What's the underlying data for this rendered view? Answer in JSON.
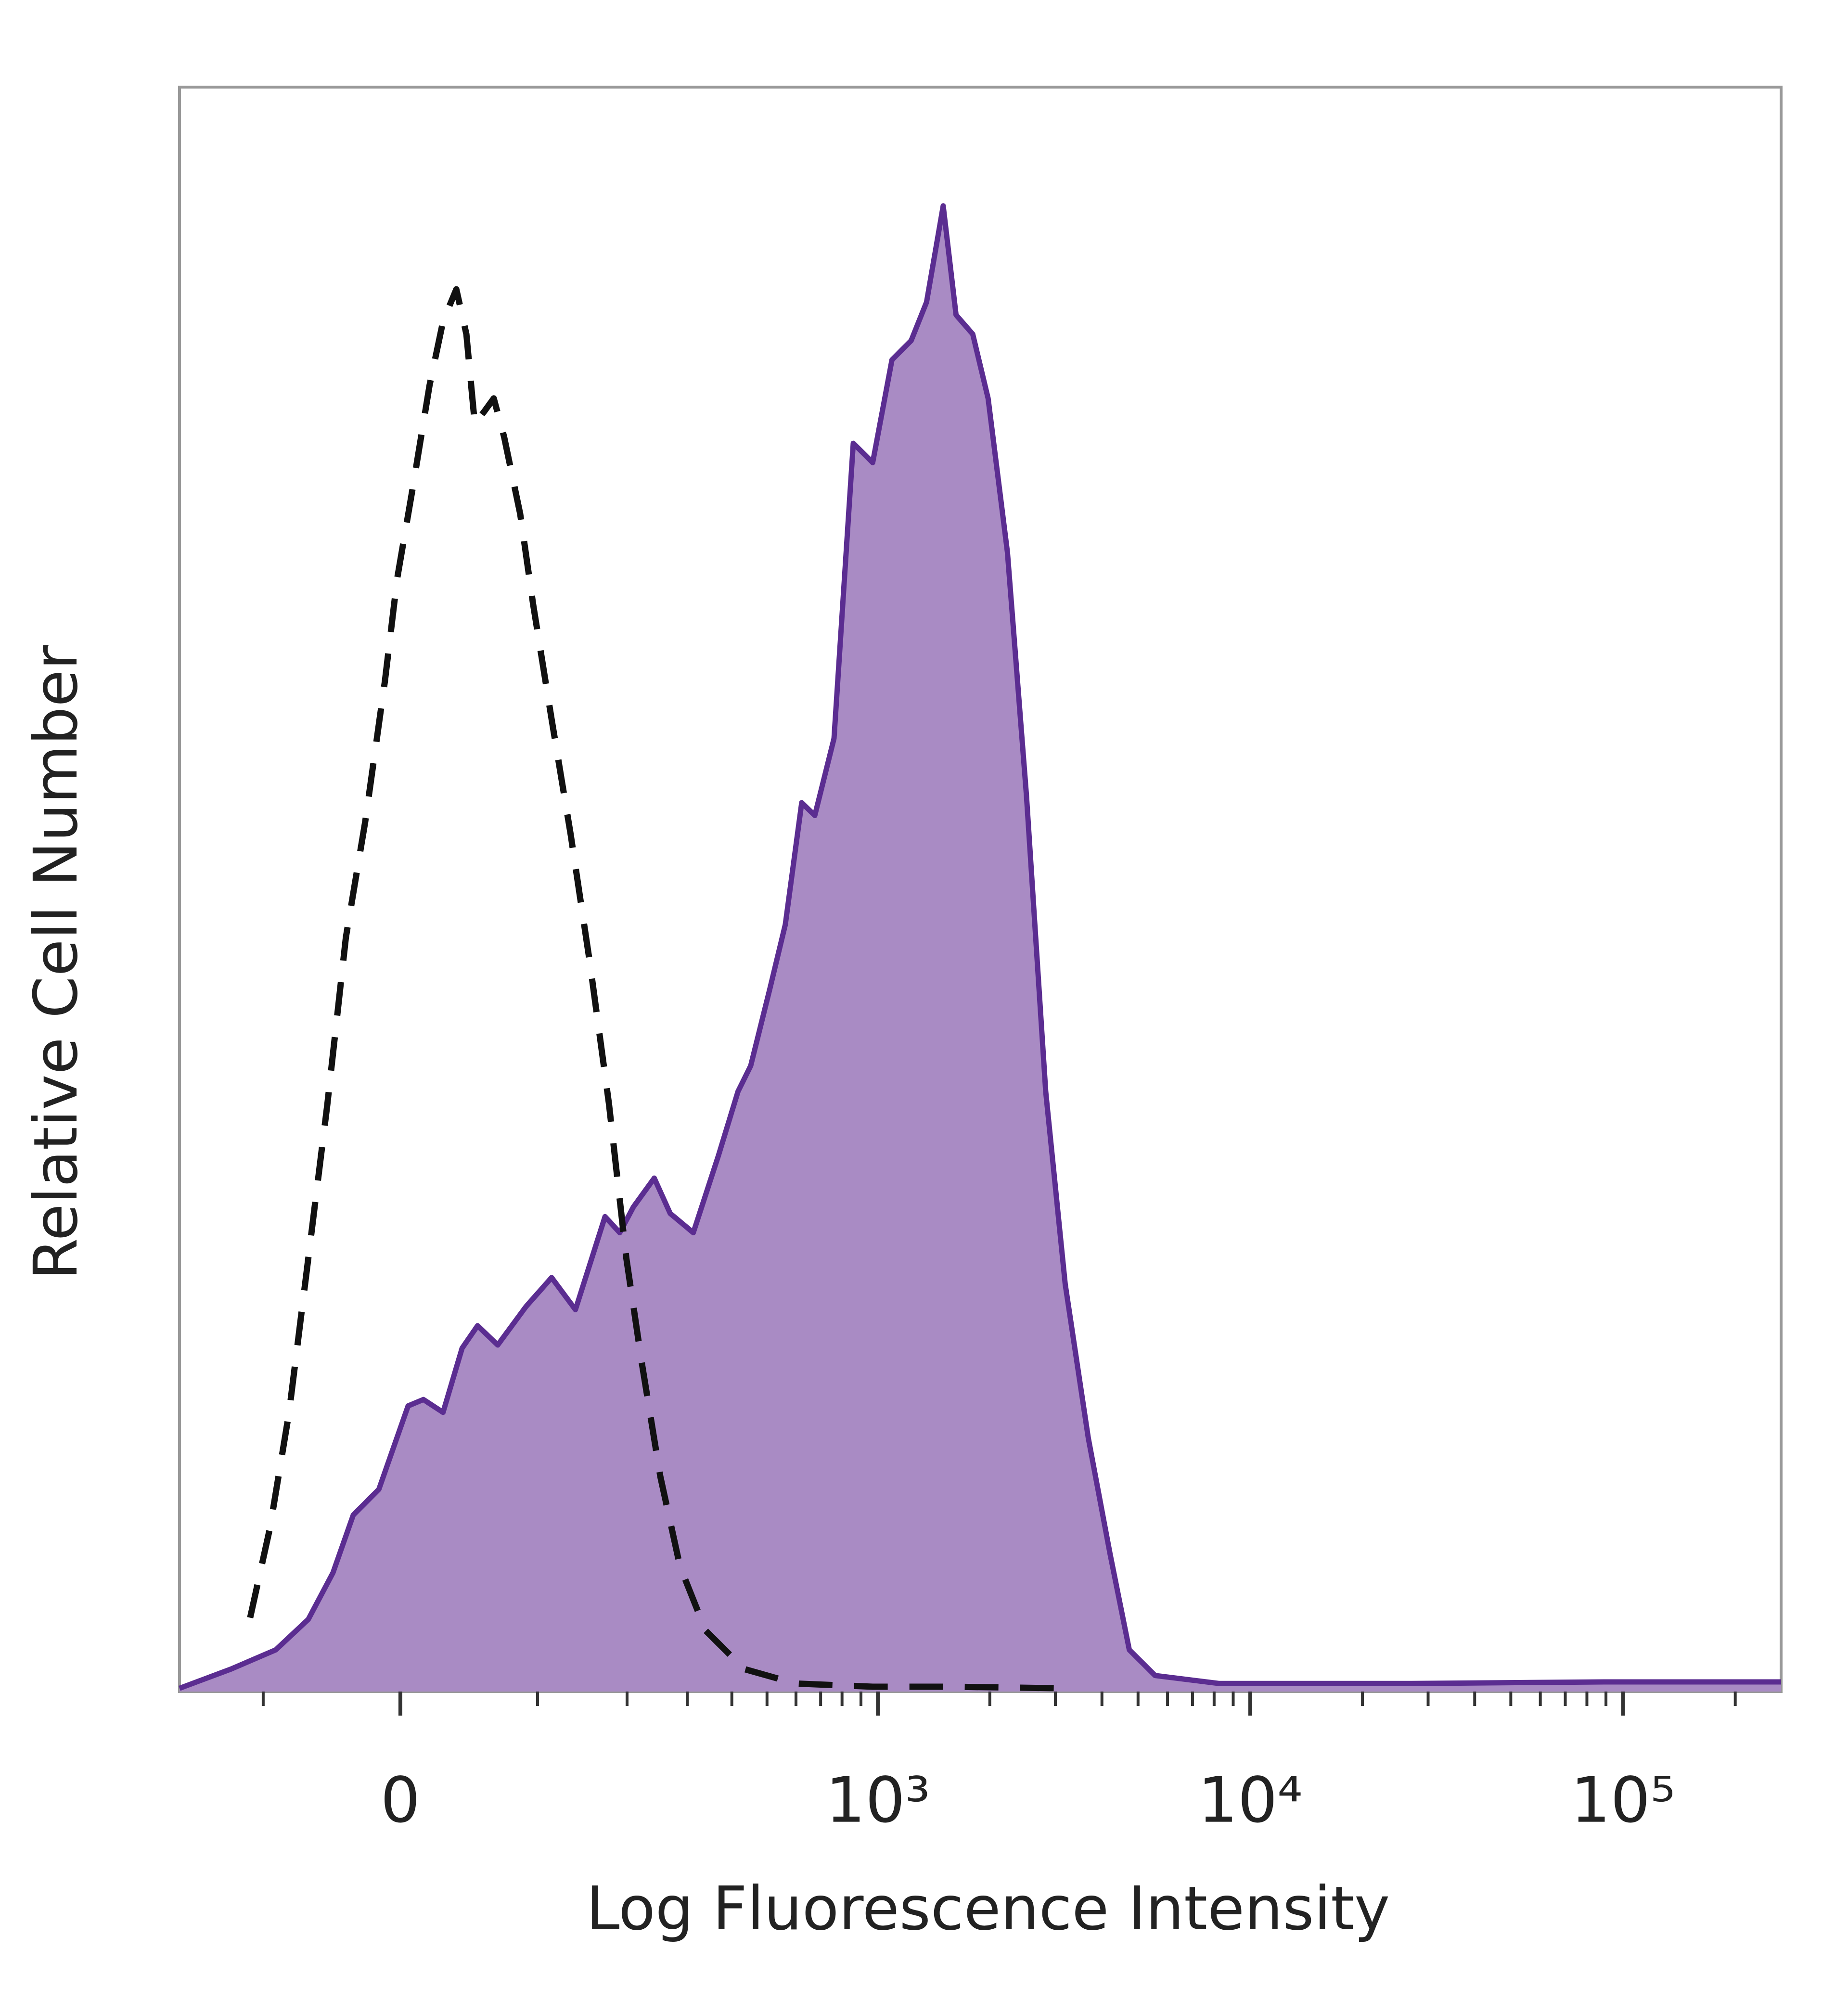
{
  "chart_data": {
    "type": "histogram-overlay",
    "xlabel": "Log Fluorescence Intensity",
    "ylabel": "Relative Cell Number",
    "xscale": "asinh",
    "xlim": [
      -192,
      265500
    ],
    "ylim": [
      0,
      100
    ],
    "xticks": [
      {
        "value": 0,
        "label": "0"
      },
      {
        "value": 1000,
        "label": "10³"
      },
      {
        "value": 10000,
        "label": "10⁴"
      },
      {
        "value": 100000,
        "label": "10⁵"
      }
    ],
    "xminorticks": [
      -100,
      100,
      200,
      300,
      400,
      500,
      600,
      700,
      800,
      900,
      2000,
      3000,
      4000,
      5000,
      6000,
      7000,
      8000,
      9000,
      20000,
      30000,
      40000,
      50000,
      60000,
      70000,
      80000,
      90000,
      200000
    ],
    "series": [
      {
        "color": "#5b2d91",
        "fill": "#a98bc4",
        "dash": false,
        "x": [
          -192,
          -131,
          -89,
          -63,
          -45,
          -31,
          -14,
          5,
          15,
          28,
          41,
          52,
          67,
          90,
          113,
          137,
          171,
          190,
          209,
          241,
          268,
          312,
          367,
          416,
          451,
          509,
          561,
          622,
          675,
          761,
          858,
          968,
          1091,
          1229,
          1352,
          1499,
          1623,
          1800,
          1979,
          2231,
          2510,
          2826,
          3188,
          3677,
          4204,
          4737,
          5555,
          8254,
          27050,
          88930,
          265500
        ],
        "values": [
          0.2,
          1.4,
          2.6,
          4.5,
          7.4,
          11.0,
          12.6,
          17.8,
          18.2,
          17.4,
          21.4,
          22.8,
          21.6,
          24.0,
          25.8,
          23.8,
          29.6,
          28.6,
          30.2,
          32.0,
          29.8,
          28.6,
          33.4,
          37.4,
          39.0,
          43.8,
          47.8,
          55.4,
          54.6,
          59.4,
          77.8,
          76.6,
          83.0,
          84.2,
          86.6,
          92.6,
          85.8,
          84.6,
          80.6,
          71.0,
          55.8,
          37.4,
          25.4,
          15.8,
          8.6,
          2.6,
          1.0,
          0.5,
          0.5,
          0.6,
          0.6
        ]
      },
      {
        "color": "#111111",
        "fill": null,
        "dash": true,
        "x": [
          -112,
          -94,
          -78,
          -63,
          -49,
          -36,
          -23,
          -10,
          -2,
          8,
          19,
          28,
          37,
          44,
          50,
          57,
          64,
          72,
          85,
          96,
          113,
          132,
          153,
          176,
          199,
          221,
          251,
          286,
          338,
          433,
          598,
          968,
          1561,
          3188
        ],
        "values": [
          4.6,
          10.2,
          17.4,
          27.0,
          36.6,
          47.0,
          54.2,
          63.0,
          69.4,
          75.0,
          81.4,
          85.4,
          87.4,
          84.6,
          79.0,
          79.8,
          80.6,
          78.2,
          73.4,
          67.8,
          60.6,
          53.4,
          45.4,
          36.6,
          27.0,
          20.6,
          13.4,
          7.8,
          3.8,
          1.4,
          0.5,
          0.3,
          0.3,
          0.2
        ]
      }
    ]
  }
}
